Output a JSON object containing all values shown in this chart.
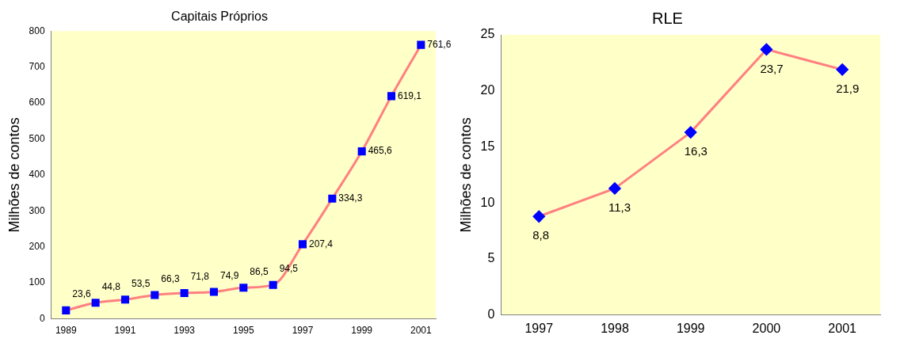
{
  "chart_data": [
    {
      "type": "line",
      "title": "Capitais Próprios",
      "ylabel": "Milhões de contos",
      "categories": [
        "1989",
        null,
        "1991",
        null,
        "1993",
        null,
        "1995",
        null,
        "1997",
        null,
        "1999",
        null,
        "2001"
      ],
      "series": [
        {
          "color": "#ff8080",
          "values": [
            23.6,
            44.8,
            53.5,
            66.3,
            71.8,
            74.9,
            86.5,
            94.5,
            207.4,
            334.3,
            465.6,
            619.1,
            761.6
          ],
          "value_labels": [
            "23,6",
            "44,8",
            "53,5",
            "66,3",
            "71,8",
            "74,9",
            "86,5",
            "94,5",
            "207,4",
            "334,3",
            "465,6",
            "619,1",
            "761,6"
          ]
        }
      ],
      "ylim": [
        0,
        800
      ],
      "yticks": [
        0,
        100,
        200,
        300,
        400,
        500,
        600,
        700,
        800
      ],
      "marker": "square",
      "line_style": "solid",
      "grid": false,
      "legend": false
    },
    {
      "type": "line",
      "title": "RLE",
      "ylabel": "Milhões de contos",
      "categories": [
        "1997",
        "1998",
        "1999",
        "2000",
        "2001"
      ],
      "series": [
        {
          "color": "#ff8080",
          "values": [
            8.8,
            11.3,
            16.3,
            23.7,
            21.9
          ],
          "value_labels": [
            "8,8",
            "11,3",
            "16,3",
            "23,7",
            "21,9"
          ]
        }
      ],
      "ylim": [
        0,
        25
      ],
      "yticks": [
        0,
        5,
        10,
        15,
        20,
        25
      ],
      "marker": "diamond",
      "line_style": "solid",
      "grid": false,
      "legend": false
    }
  ]
}
